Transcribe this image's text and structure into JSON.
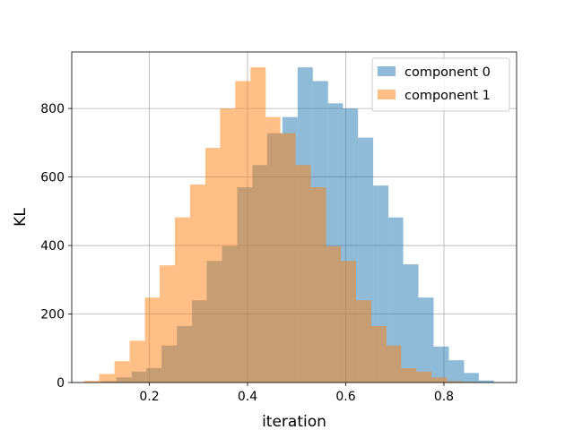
{
  "chart_data": {
    "type": "bar",
    "subtype": "histogram",
    "xlabel": "iteration",
    "ylabel": "KL",
    "xlim": [
      0.042,
      0.948
    ],
    "ylim": [
      0,
      965
    ],
    "xticks": [
      0.2,
      0.4,
      0.6,
      0.8
    ],
    "xtick_labels": [
      "0.2",
      "0.4",
      "0.6",
      "0.8"
    ],
    "yticks": [
      0,
      200,
      400,
      600,
      800
    ],
    "ytick_labels": [
      "0",
      "200",
      "400",
      "600",
      "800"
    ],
    "grid": true,
    "legend": "top-right",
    "alpha": 0.5,
    "series": [
      {
        "name": "component 0",
        "color": "#1f77b4",
        "bin_edges": [
          0.102,
          0.133,
          0.164,
          0.194,
          0.225,
          0.256,
          0.287,
          0.317,
          0.348,
          0.379,
          0.41,
          0.44,
          0.471,
          0.502,
          0.533,
          0.564,
          0.594,
          0.625,
          0.656,
          0.687,
          0.717,
          0.748,
          0.779,
          0.81,
          0.841,
          0.871,
          0.902,
          0.933
        ],
        "values": [
          4,
          15,
          32,
          42,
          108,
          165,
          240,
          355,
          398,
          570,
          635,
          728,
          775,
          920,
          880,
          815,
          800,
          715,
          575,
          482,
          345,
          248,
          105,
          65,
          28,
          6,
          0
        ]
      },
      {
        "name": "component 1",
        "color": "#ff7f0e",
        "bin_edges": [
          0.067,
          0.098,
          0.129,
          0.16,
          0.191,
          0.221,
          0.252,
          0.283,
          0.314,
          0.344,
          0.375,
          0.406,
          0.437,
          0.467,
          0.498,
          0.529,
          0.56,
          0.59,
          0.621,
          0.652,
          0.683,
          0.713,
          0.744,
          0.775,
          0.806,
          0.836,
          0.867,
          0.898
        ],
        "values": [
          5,
          25,
          62,
          122,
          248,
          342,
          482,
          578,
          685,
          800,
          880,
          920,
          775,
          728,
          635,
          570,
          398,
          355,
          240,
          165,
          108,
          42,
          32,
          15,
          4,
          2,
          0
        ]
      }
    ]
  }
}
